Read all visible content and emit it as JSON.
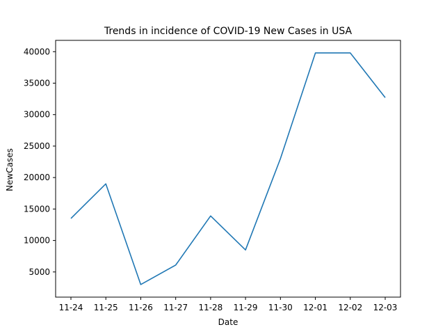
{
  "chart_data": {
    "type": "line",
    "title": "Trends in incidence of COVID-19 New Cases in USA",
    "xlabel": "Date",
    "ylabel": "NewCases",
    "categories": [
      "11-24",
      "11-25",
      "11-26",
      "11-27",
      "11-28",
      "11-29",
      "11-30",
      "12-01",
      "12-02",
      "12-03"
    ],
    "values": [
      13500,
      19000,
      3000,
      6100,
      13900,
      8500,
      23000,
      39800,
      39800,
      32700
    ],
    "ylim": [
      1000,
      41800
    ],
    "yticks": [
      5000,
      10000,
      15000,
      20000,
      25000,
      30000,
      35000,
      40000
    ],
    "grid": false,
    "line_color": "#1f77b4"
  }
}
